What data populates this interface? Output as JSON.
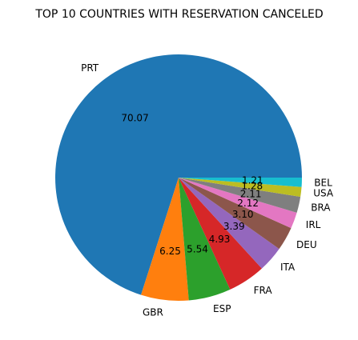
{
  "chart_data": {
    "type": "pie",
    "title": "TOP 10 COUNTRIES WITH RESERVATION CANCELED",
    "categories": [
      "PRT",
      "GBR",
      "ESP",
      "FRA",
      "ITA",
      "DEU",
      "IRL",
      "BRA",
      "USA",
      "BEL"
    ],
    "values": [
      70.07,
      6.25,
      5.54,
      4.93,
      3.39,
      3.1,
      2.12,
      2.11,
      1.28,
      1.21
    ],
    "value_labels": [
      "70.07",
      "6.25",
      "5.54",
      "4.93",
      "3.39",
      "3.10",
      "2.12",
      "2.11",
      "1.28",
      "1.21"
    ],
    "colors": [
      "#1f77b4",
      "#ff7f0e",
      "#2ca02c",
      "#d62728",
      "#9467bd",
      "#8c564b",
      "#e377c2",
      "#7f7f7f",
      "#bcbd22",
      "#17becf"
    ],
    "start_angle_deg": 0,
    "direction": "counterclockwise",
    "legend": "none"
  }
}
